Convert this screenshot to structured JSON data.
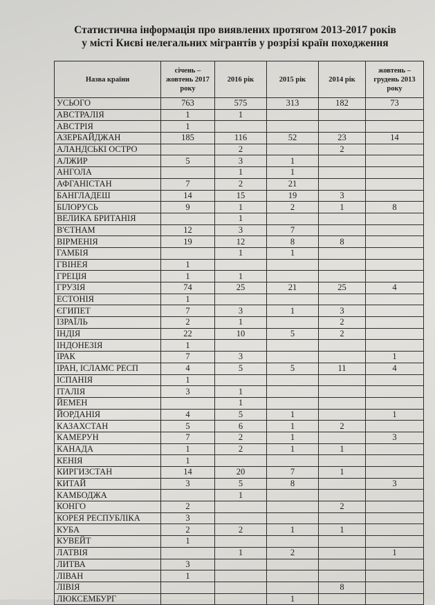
{
  "title": {
    "line1": "Статистична інформація про виявлених протягом 2013-2017 років",
    "line2": "у місті Києві нелегальних мігрантів у розрізі країн походження"
  },
  "table": {
    "headers": [
      "Назва країни",
      "січень – жовтень 2017 року",
      "2016 рік",
      "2015 рік",
      "2014 рік",
      "жовтень – грудень 2013 року"
    ],
    "rows": [
      [
        "УСЬОГО",
        "763",
        "575",
        "313",
        "182",
        "73"
      ],
      [
        "АВСТРАЛІЯ",
        "1",
        "1",
        "",
        "",
        ""
      ],
      [
        "АВСТРІЯ",
        "1",
        "",
        "",
        "",
        ""
      ],
      [
        "АЗЕРБАЙДЖАН",
        "185",
        "116",
        "52",
        "23",
        "14"
      ],
      [
        "АЛАНДСЬКІ ОСТРО",
        "",
        "2",
        "",
        "2",
        ""
      ],
      [
        "АЛЖИР",
        "5",
        "3",
        "1",
        "",
        ""
      ],
      [
        "АНГОЛА",
        "",
        "1",
        "1",
        "",
        ""
      ],
      [
        "АФГАНІСТАН",
        "7",
        "2",
        "21",
        "",
        ""
      ],
      [
        "БАНГЛАДЕШ",
        "14",
        "15",
        "19",
        "3",
        ""
      ],
      [
        "БІЛОРУСЬ",
        "9",
        "1",
        "2",
        "1",
        "8"
      ],
      [
        "ВЕЛИКА БРИТАНІЯ",
        "",
        "1",
        "",
        "",
        ""
      ],
      [
        "В'ЄТНАМ",
        "12",
        "3",
        "7",
        "",
        ""
      ],
      [
        "ВІРМЕНІЯ",
        "19",
        "12",
        "8",
        "8",
        ""
      ],
      [
        "ГАМБІЯ",
        "",
        "1",
        "1",
        "",
        ""
      ],
      [
        "ГВІНЕЯ",
        "1",
        "",
        "",
        "",
        ""
      ],
      [
        "ГРЕЦІЯ",
        "1",
        "1",
        "",
        "",
        ""
      ],
      [
        "ГРУЗІЯ",
        "74",
        "25",
        "21",
        "25",
        "4"
      ],
      [
        "ЕСТОНІЯ",
        "1",
        "",
        "",
        "",
        ""
      ],
      [
        "ЄГИПЕТ",
        "7",
        "3",
        "1",
        "3",
        ""
      ],
      [
        "ІЗРАЇЛЬ",
        "2",
        "1",
        "",
        "2",
        ""
      ],
      [
        "ІНДІЯ",
        "22",
        "10",
        "5",
        "2",
        ""
      ],
      [
        "ІНДОНЕЗІЯ",
        "1",
        "",
        "",
        "",
        ""
      ],
      [
        "ІРАК",
        "7",
        "3",
        "",
        "",
        "1"
      ],
      [
        "ІРАН, ІСЛАМС РЕСП",
        "4",
        "5",
        "5",
        "11",
        "4"
      ],
      [
        "ІСПАНІЯ",
        "1",
        "",
        "",
        "",
        ""
      ],
      [
        "ІТАЛІЯ",
        "3",
        "1",
        "",
        "",
        ""
      ],
      [
        "ЙЕМЕН",
        "",
        "1",
        "",
        "",
        ""
      ],
      [
        "ЙОРДАНІЯ",
        "4",
        "5",
        "1",
        "",
        "1"
      ],
      [
        "КАЗАХСТАН",
        "5",
        "6",
        "1",
        "2",
        ""
      ],
      [
        "КАМЕРУН",
        "7",
        "2",
        "1",
        "",
        "3"
      ],
      [
        "КАНАДА",
        "1",
        "2",
        "1",
        "1",
        ""
      ],
      [
        "КЕНІЯ",
        "1",
        "",
        "",
        "",
        ""
      ],
      [
        "КИРГИЗСТАН",
        "14",
        "20",
        "7",
        "1",
        ""
      ],
      [
        "КИТАЙ",
        "3",
        "5",
        "8",
        "",
        "3"
      ],
      [
        "КАМБОДЖА",
        "",
        "1",
        "",
        "",
        ""
      ],
      [
        "КОНГО",
        "2",
        "",
        "",
        "2",
        ""
      ],
      [
        "КОРЕЯ РЕСПУБЛІКА",
        "3",
        "",
        "",
        "",
        ""
      ],
      [
        "КУБА",
        "2",
        "2",
        "1",
        "1",
        ""
      ],
      [
        "КУВЕЙТ",
        "1",
        "",
        "",
        "",
        ""
      ],
      [
        "ЛАТВІЯ",
        "",
        "1",
        "2",
        "",
        "1"
      ],
      [
        "ЛИТВА",
        "3",
        "",
        "",
        "",
        ""
      ],
      [
        "ЛІВАН",
        "1",
        "",
        "",
        "",
        ""
      ],
      [
        "ЛІВІЯ",
        "",
        "",
        "",
        "8",
        ""
      ],
      [
        "ЛЮКСЕМБУРГ",
        "",
        "",
        "1",
        "",
        ""
      ]
    ]
  }
}
